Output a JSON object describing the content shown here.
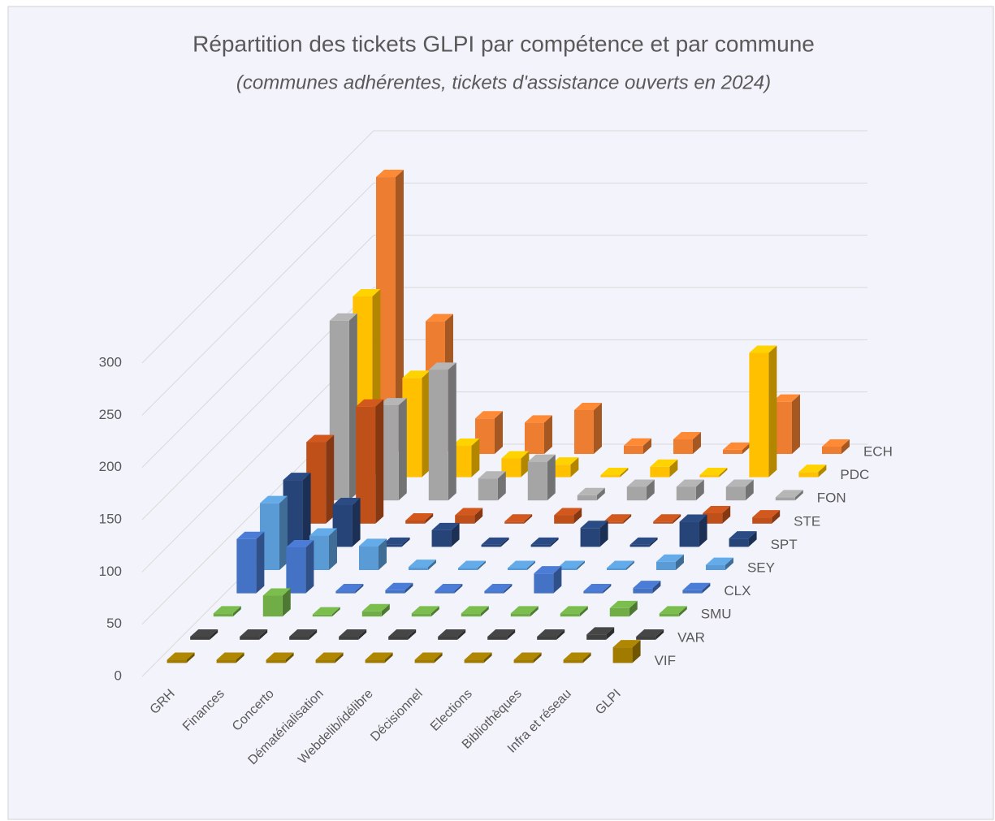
{
  "chart_data": {
    "type": "bar3d",
    "title": "Répartition des tickets GLPI par compétence et par commune",
    "subtitle": "(communes adhérentes, tickets d'assistance ouverts en 2024)",
    "categories": [
      "GRH",
      "Finances",
      "Concerto",
      "Dématérialisation",
      "Webdelib/idélibre",
      "Décisionnel",
      "Elections",
      "Bibliothèques",
      "Infra et réseau",
      "GLPI"
    ],
    "series": [
      {
        "name": "VIF",
        "color": "#a07b00",
        "values": [
          3,
          3,
          3,
          3,
          3,
          3,
          3,
          3,
          3,
          15
        ]
      },
      {
        "name": "VAR",
        "color": "#404040",
        "values": [
          3,
          3,
          3,
          3,
          3,
          3,
          3,
          3,
          5,
          3
        ]
      },
      {
        "name": "SMU",
        "color": "#70ad47",
        "values": [
          3,
          20,
          2,
          5,
          3,
          3,
          3,
          3,
          8,
          3
        ]
      },
      {
        "name": "CLX",
        "color": "#4472c4",
        "values": [
          52,
          44,
          2,
          3,
          2,
          2,
          19,
          2,
          5,
          3
        ]
      },
      {
        "name": "SEY",
        "color": "#5b9bd5",
        "values": [
          64,
          33,
          23,
          3,
          2,
          2,
          2,
          2,
          8,
          5
        ]
      },
      {
        "name": "SPT",
        "color": "#264478",
        "values": [
          64,
          40,
          2,
          16,
          2,
          2,
          18,
          2,
          24,
          8
        ]
      },
      {
        "name": "STE",
        "color": "#c0501a",
        "values": [
          78,
          112,
          3,
          8,
          2,
          8,
          2,
          2,
          10,
          6
        ]
      },
      {
        "name": "FON",
        "color": "#a5a5a5",
        "values": [
          172,
          91,
          125,
          21,
          37,
          5,
          13,
          13,
          13,
          3
        ]
      },
      {
        "name": "PDC",
        "color": "#ffc000",
        "values": [
          173,
          95,
          30,
          18,
          12,
          2,
          10,
          2,
          119,
          5
        ]
      },
      {
        "name": "ECH",
        "color": "#ed7d31",
        "values": [
          265,
          127,
          34,
          30,
          42,
          8,
          14,
          4,
          50,
          7
        ]
      }
    ],
    "ylim": [
      0,
      300
    ],
    "yticks": [
      0,
      50,
      100,
      150,
      200,
      250,
      300
    ],
    "grid": true
  }
}
